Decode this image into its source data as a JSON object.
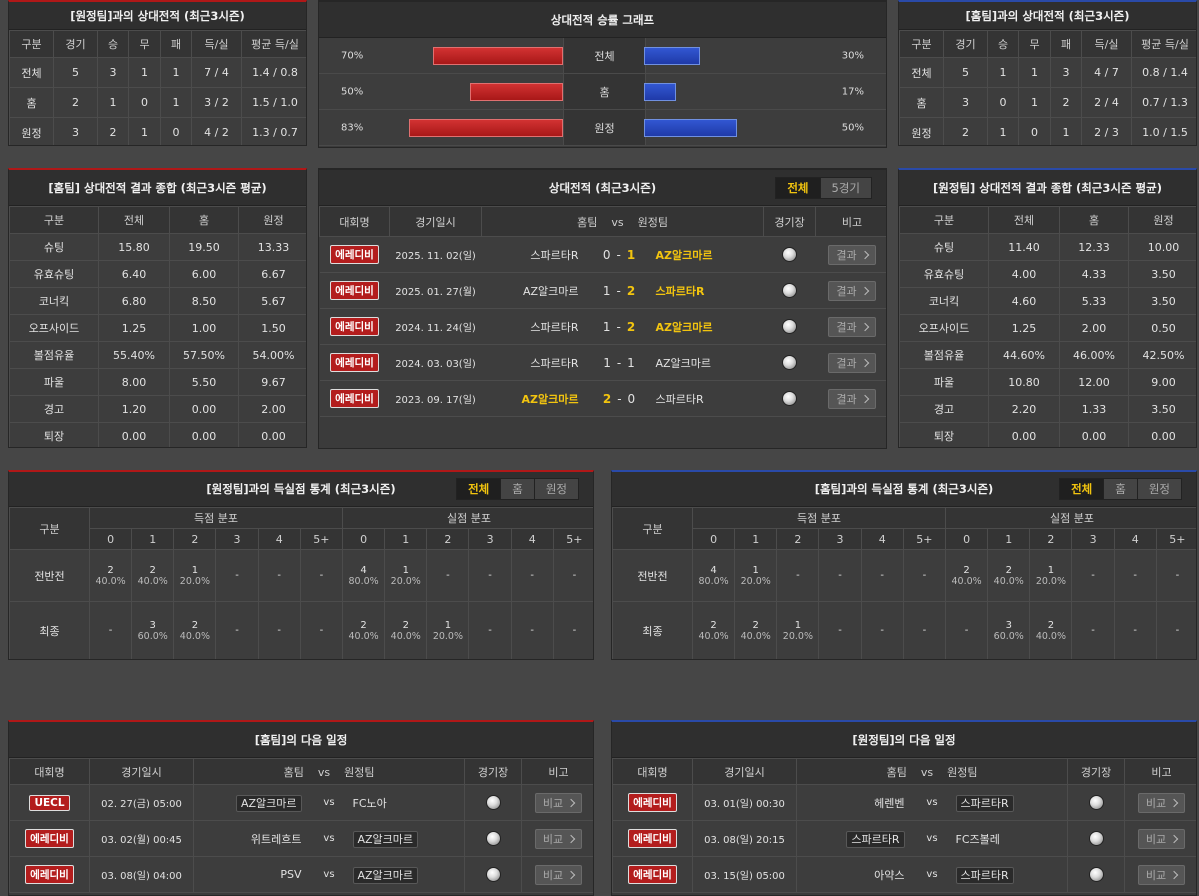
{
  "record_away": {
    "title": "[원정팀]과의 상대전적 (최근3시즌)",
    "headers": [
      "구분",
      "경기",
      "승",
      "무",
      "패",
      "득/실",
      "평균 득/실"
    ],
    "rows": [
      [
        "전체",
        "5",
        "3",
        "1",
        "1",
        "7 / 4",
        "1.4 / 0.8"
      ],
      [
        "홈",
        "2",
        "1",
        "0",
        "1",
        "3 / 2",
        "1.5 / 1.0"
      ],
      [
        "원정",
        "3",
        "2",
        "1",
        "0",
        "4 / 2",
        "1.3 / 0.7"
      ]
    ]
  },
  "win_graph": {
    "title": "상대전적 승률 그래프",
    "rows": [
      {
        "label": "전체",
        "home": 70,
        "home_label": "70%",
        "away": 30,
        "away_label": "30%"
      },
      {
        "label": "홈",
        "home": 50,
        "home_label": "50%",
        "away": 17,
        "away_label": "17%"
      },
      {
        "label": "원정",
        "home": 83,
        "home_label": "83%",
        "away": 50,
        "away_label": "50%"
      }
    ]
  },
  "record_home": {
    "title": "[홈팀]과의 상대전적 (최근3시즌)",
    "headers": [
      "구분",
      "경기",
      "승",
      "무",
      "패",
      "득/실",
      "평균 득/실"
    ],
    "rows": [
      [
        "전체",
        "5",
        "1",
        "1",
        "3",
        "4 / 7",
        "0.8 / 1.4"
      ],
      [
        "홈",
        "3",
        "0",
        "1",
        "2",
        "2 / 4",
        "0.7 / 1.3"
      ],
      [
        "원정",
        "2",
        "1",
        "0",
        "1",
        "2 / 3",
        "1.0 / 1.5"
      ]
    ]
  },
  "summary_home": {
    "title": "[홈팀] 상대전적 결과 종합 (최근3시즌 평균)",
    "headers": [
      "구분",
      "전체",
      "홈",
      "원정"
    ],
    "rows": [
      [
        "슈팅",
        "15.80",
        "19.50",
        "13.33"
      ],
      [
        "유효슈팅",
        "6.40",
        "6.00",
        "6.67"
      ],
      [
        "코너킥",
        "6.80",
        "8.50",
        "5.67"
      ],
      [
        "오프사이드",
        "1.25",
        "1.00",
        "1.50"
      ],
      [
        "볼점유율",
        "55.40%",
        "57.50%",
        "54.00%"
      ],
      [
        "파울",
        "8.00",
        "5.50",
        "9.67"
      ],
      [
        "경고",
        "1.20",
        "0.00",
        "2.00"
      ],
      [
        "퇴장",
        "0.00",
        "0.00",
        "0.00"
      ]
    ]
  },
  "h2h": {
    "title": "상대전적 (최근3시즌)",
    "tabs": [
      "전체",
      "5경기"
    ],
    "active_tab": 0,
    "headers": [
      "대회명",
      "경기일시",
      "홈팀",
      "vs",
      "원정팀",
      "경기장",
      "비고"
    ],
    "score_sep": "-",
    "button": "결과",
    "rows": [
      {
        "league": "에레디비",
        "date": "2025. 11. 02(일)",
        "home": "스파르타R",
        "home_score": "0",
        "away_score": "1",
        "away": "AZ알크마르",
        "winner": "away"
      },
      {
        "league": "에레디비",
        "date": "2025. 01. 27(월)",
        "home": "AZ알크마르",
        "home_score": "1",
        "away_score": "2",
        "away": "스파르타R",
        "winner": "away"
      },
      {
        "league": "에레디비",
        "date": "2024. 11. 24(일)",
        "home": "스파르타R",
        "home_score": "1",
        "away_score": "2",
        "away": "AZ알크마르",
        "winner": "away"
      },
      {
        "league": "에레디비",
        "date": "2024. 03. 03(일)",
        "home": "스파르타R",
        "home_score": "1",
        "away_score": "1",
        "away": "AZ알크마르",
        "winner": null
      },
      {
        "league": "에레디비",
        "date": "2023. 09. 17(일)",
        "home": "AZ알크마르",
        "home_score": "2",
        "away_score": "0",
        "away": "스파르타R",
        "winner": "home"
      }
    ]
  },
  "summary_away": {
    "title": "[원정팀] 상대전적 결과 종합 (최근3시즌 평균)",
    "headers": [
      "구분",
      "전체",
      "홈",
      "원정"
    ],
    "rows": [
      [
        "슈팅",
        "11.40",
        "12.33",
        "10.00"
      ],
      [
        "유효슈팅",
        "4.00",
        "4.33",
        "3.50"
      ],
      [
        "코너킥",
        "4.60",
        "5.33",
        "3.50"
      ],
      [
        "오프사이드",
        "1.25",
        "2.00",
        "0.50"
      ],
      [
        "볼점유율",
        "44.60%",
        "46.00%",
        "42.50%"
      ],
      [
        "파울",
        "10.80",
        "12.00",
        "9.00"
      ],
      [
        "경고",
        "2.20",
        "1.33",
        "3.50"
      ],
      [
        "퇴장",
        "0.00",
        "0.00",
        "0.00"
      ]
    ]
  },
  "goals_away": {
    "title": "[원정팀]과의 득실점 통계 (최근3시즌)",
    "tabs": [
      "전체",
      "홈",
      "원정"
    ],
    "active_tab": 0,
    "row_header": "구분",
    "groups": [
      "득점 분포",
      "실점 분포"
    ],
    "buckets": [
      "0",
      "1",
      "2",
      "3",
      "4",
      "5+"
    ],
    "rows": [
      {
        "label": "전반전",
        "cells": [
          [
            "2",
            "40.0%"
          ],
          [
            "2",
            "40.0%"
          ],
          [
            "1",
            "20.0%"
          ],
          [
            "-"
          ],
          [
            "-"
          ],
          [
            "-"
          ],
          [
            "4",
            "80.0%"
          ],
          [
            "1",
            "20.0%"
          ],
          [
            "-"
          ],
          [
            "-"
          ],
          [
            "-"
          ],
          [
            "-"
          ]
        ]
      },
      {
        "label": "최종",
        "cells": [
          [
            "-"
          ],
          [
            "3",
            "60.0%"
          ],
          [
            "2",
            "40.0%"
          ],
          [
            "-"
          ],
          [
            "-"
          ],
          [
            "-"
          ],
          [
            "2",
            "40.0%"
          ],
          [
            "2",
            "40.0%"
          ],
          [
            "1",
            "20.0%"
          ],
          [
            "-"
          ],
          [
            "-"
          ],
          [
            "-"
          ]
        ]
      }
    ]
  },
  "goals_home": {
    "title": "[홈팀]과의 득실점 통계 (최근3시즌)",
    "tabs": [
      "전체",
      "홈",
      "원정"
    ],
    "active_tab": 0,
    "row_header": "구분",
    "groups": [
      "득점 분포",
      "실점 분포"
    ],
    "buckets": [
      "0",
      "1",
      "2",
      "3",
      "4",
      "5+"
    ],
    "rows": [
      {
        "label": "전반전",
        "cells": [
          [
            "4",
            "80.0%"
          ],
          [
            "1",
            "20.0%"
          ],
          [
            "-"
          ],
          [
            "-"
          ],
          [
            "-"
          ],
          [
            "-"
          ],
          [
            "2",
            "40.0%"
          ],
          [
            "2",
            "40.0%"
          ],
          [
            "1",
            "20.0%"
          ],
          [
            "-"
          ],
          [
            "-"
          ],
          [
            "-"
          ]
        ]
      },
      {
        "label": "최종",
        "cells": [
          [
            "2",
            "40.0%"
          ],
          [
            "2",
            "40.0%"
          ],
          [
            "1",
            "20.0%"
          ],
          [
            "-"
          ],
          [
            "-"
          ],
          [
            "-"
          ],
          [
            "-"
          ],
          [
            "3",
            "60.0%"
          ],
          [
            "2",
            "40.0%"
          ],
          [
            "-"
          ],
          [
            "-"
          ],
          [
            "-"
          ]
        ]
      }
    ]
  },
  "next_home": {
    "title": "[홈팀]의 다음 일정",
    "headers": [
      "대회명",
      "경기일시",
      "홈팀",
      "vs",
      "원정팀",
      "경기장",
      "비고"
    ],
    "vs": "vs",
    "button": "비교",
    "rows": [
      {
        "league": "UECL",
        "date": "02. 27(금) 05:00",
        "home": "AZ알크마르",
        "away": "FC노아",
        "focus": "home"
      },
      {
        "league": "에레디비",
        "date": "03. 02(월) 00:45",
        "home": "위트레흐트",
        "away": "AZ알크마르",
        "focus": "away"
      },
      {
        "league": "에레디비",
        "date": "03. 08(일) 04:00",
        "home": "PSV",
        "away": "AZ알크마르",
        "focus": "away"
      }
    ]
  },
  "next_away": {
    "title": "[원정팀]의 다음 일정",
    "headers": [
      "대회명",
      "경기일시",
      "홈팀",
      "vs",
      "원정팀",
      "경기장",
      "비고"
    ],
    "vs": "vs",
    "button": "비교",
    "rows": [
      {
        "league": "에레디비",
        "date": "03. 01(일) 00:30",
        "home": "헤렌벤",
        "away": "스파르타R",
        "focus": "away"
      },
      {
        "league": "에레디비",
        "date": "03. 08(일) 20:15",
        "home": "스파르타R",
        "away": "FC즈볼레",
        "focus": "home"
      },
      {
        "league": "에레디비",
        "date": "03. 15(일) 05:00",
        "home": "아약스",
        "away": "스파르타R",
        "focus": "away"
      }
    ]
  }
}
